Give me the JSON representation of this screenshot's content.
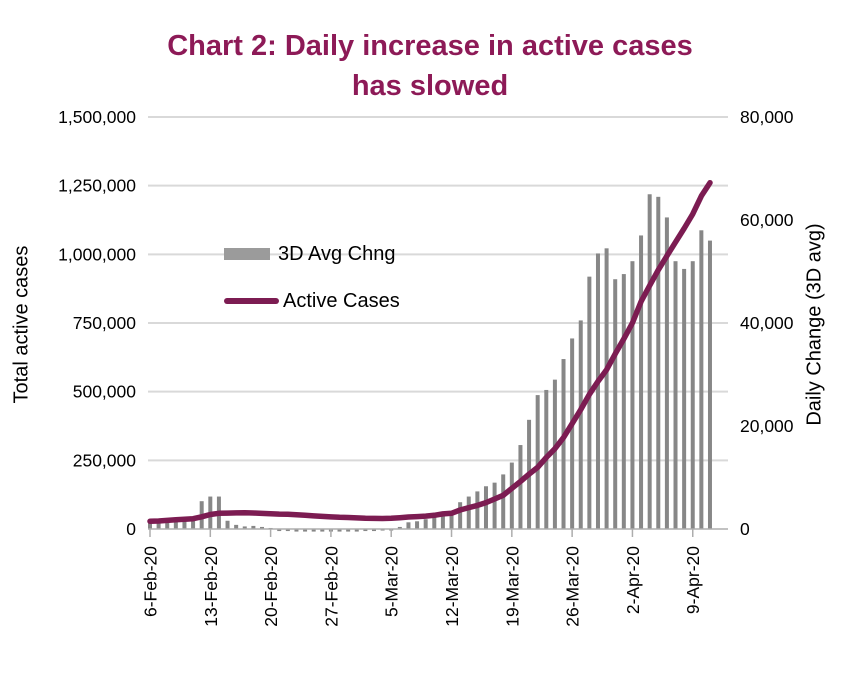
{
  "title": {
    "line1": "Chart 2: Daily increase in active cases",
    "line2": "has slowed"
  },
  "legend": {
    "bar_label": "3D Avg Chng",
    "line_label": "Active Cases"
  },
  "colors": {
    "title": "#8D1A57",
    "line": "#7C1C52",
    "bar": "#878787",
    "grid": "#D9D9D9",
    "axis": "#ADADAD",
    "text": "#000000"
  },
  "chart_data": {
    "type": "combo bar + line, dual axis",
    "grid": "horizontal gridlines on",
    "legend_position": "inside top-left of plot",
    "left_axis": {
      "label": "Total active cases",
      "range": [
        0,
        1500000
      ],
      "tick_step": 250000,
      "tick_labels": [
        "0",
        "250,000",
        "500,000",
        "750,000",
        "1,000,000",
        "1,250,000",
        "1,500,000"
      ]
    },
    "right_axis": {
      "label": "Daily Change (3D avg)",
      "range": [
        0,
        80000
      ],
      "tick_step": 20000,
      "tick_labels": [
        "0",
        "20,000",
        "40,000",
        "60,000",
        "80,000"
      ]
    },
    "x_tick_labels": [
      "6-Feb-20",
      "13-Feb-20",
      "20-Feb-20",
      "27-Feb-20",
      "5-Mar-20",
      "12-Mar-20",
      "19-Mar-20",
      "26-Mar-20",
      "2-Apr-20",
      "9-Apr-20"
    ],
    "x": [
      "6-Feb-20",
      "7-Feb-20",
      "8-Feb-20",
      "9-Feb-20",
      "10-Feb-20",
      "11-Feb-20",
      "12-Feb-20",
      "13-Feb-20",
      "14-Feb-20",
      "15-Feb-20",
      "16-Feb-20",
      "17-Feb-20",
      "18-Feb-20",
      "19-Feb-20",
      "20-Feb-20",
      "21-Feb-20",
      "22-Feb-20",
      "23-Feb-20",
      "24-Feb-20",
      "25-Feb-20",
      "26-Feb-20",
      "27-Feb-20",
      "28-Feb-20",
      "29-Feb-20",
      "1-Mar-20",
      "2-Mar-20",
      "3-Mar-20",
      "4-Mar-20",
      "5-Mar-20",
      "6-Mar-20",
      "7-Mar-20",
      "8-Mar-20",
      "9-Mar-20",
      "10-Mar-20",
      "11-Mar-20",
      "12-Mar-20",
      "13-Mar-20",
      "14-Mar-20",
      "15-Mar-20",
      "16-Mar-20",
      "17-Mar-20",
      "18-Mar-20",
      "19-Mar-20",
      "20-Mar-20",
      "21-Mar-20",
      "22-Mar-20",
      "23-Mar-20",
      "24-Mar-20",
      "25-Mar-20",
      "26-Mar-20",
      "27-Mar-20",
      "28-Mar-20",
      "29-Mar-20",
      "30-Mar-20",
      "31-Mar-20",
      "1-Apr-20",
      "2-Apr-20",
      "3-Apr-20",
      "4-Apr-20",
      "5-Apr-20",
      "6-Apr-20",
      "7-Apr-20",
      "8-Apr-20",
      "9-Apr-20",
      "10-Apr-20",
      "11-Apr-20"
    ],
    "series": [
      {
        "name": "3D Avg Chng",
        "type": "bar",
        "axis": "right",
        "values": [
          1400,
          1500,
          1700,
          1400,
          1500,
          1600,
          5400,
          6300,
          6300,
          1600,
          800,
          500,
          600,
          400,
          200,
          -400,
          -400,
          -500,
          -500,
          -500,
          -500,
          -500,
          -500,
          -500,
          -500,
          -400,
          -400,
          -300,
          -300,
          400,
          1300,
          1500,
          1900,
          2300,
          2700,
          3500,
          5200,
          6300,
          7300,
          8300,
          9000,
          10600,
          12900,
          16300,
          21200,
          26000,
          27000,
          29000,
          33000,
          37000,
          40500,
          49000,
          53500,
          54500,
          48500,
          49500,
          52000,
          57000,
          65000,
          64500,
          60500,
          52000,
          50500,
          52000,
          58000,
          56000
        ]
      },
      {
        "name": "Active Cases",
        "type": "line",
        "axis": "left",
        "values": [
          27900,
          29300,
          31400,
          33400,
          35300,
          37600,
          44300,
          52900,
          57300,
          58000,
          58500,
          58800,
          58200,
          56700,
          55600,
          54400,
          53400,
          51700,
          49800,
          47800,
          45800,
          44100,
          42700,
          41700,
          40400,
          39000,
          38600,
          38100,
          39000,
          41200,
          43800,
          45100,
          47100,
          49900,
          54800,
          57000,
          69300,
          77800,
          85800,
          96100,
          109300,
          122800,
          147900,
          172900,
          199800,
          224600,
          260400,
          292300,
          332600,
          383500,
          435200,
          490500,
          537200,
          580000,
          637400,
          692100,
          749900,
          828400,
          886500,
          943400,
          994400,
          1044100,
          1093900,
          1146400,
          1212900,
          1260900
        ]
      }
    ]
  }
}
